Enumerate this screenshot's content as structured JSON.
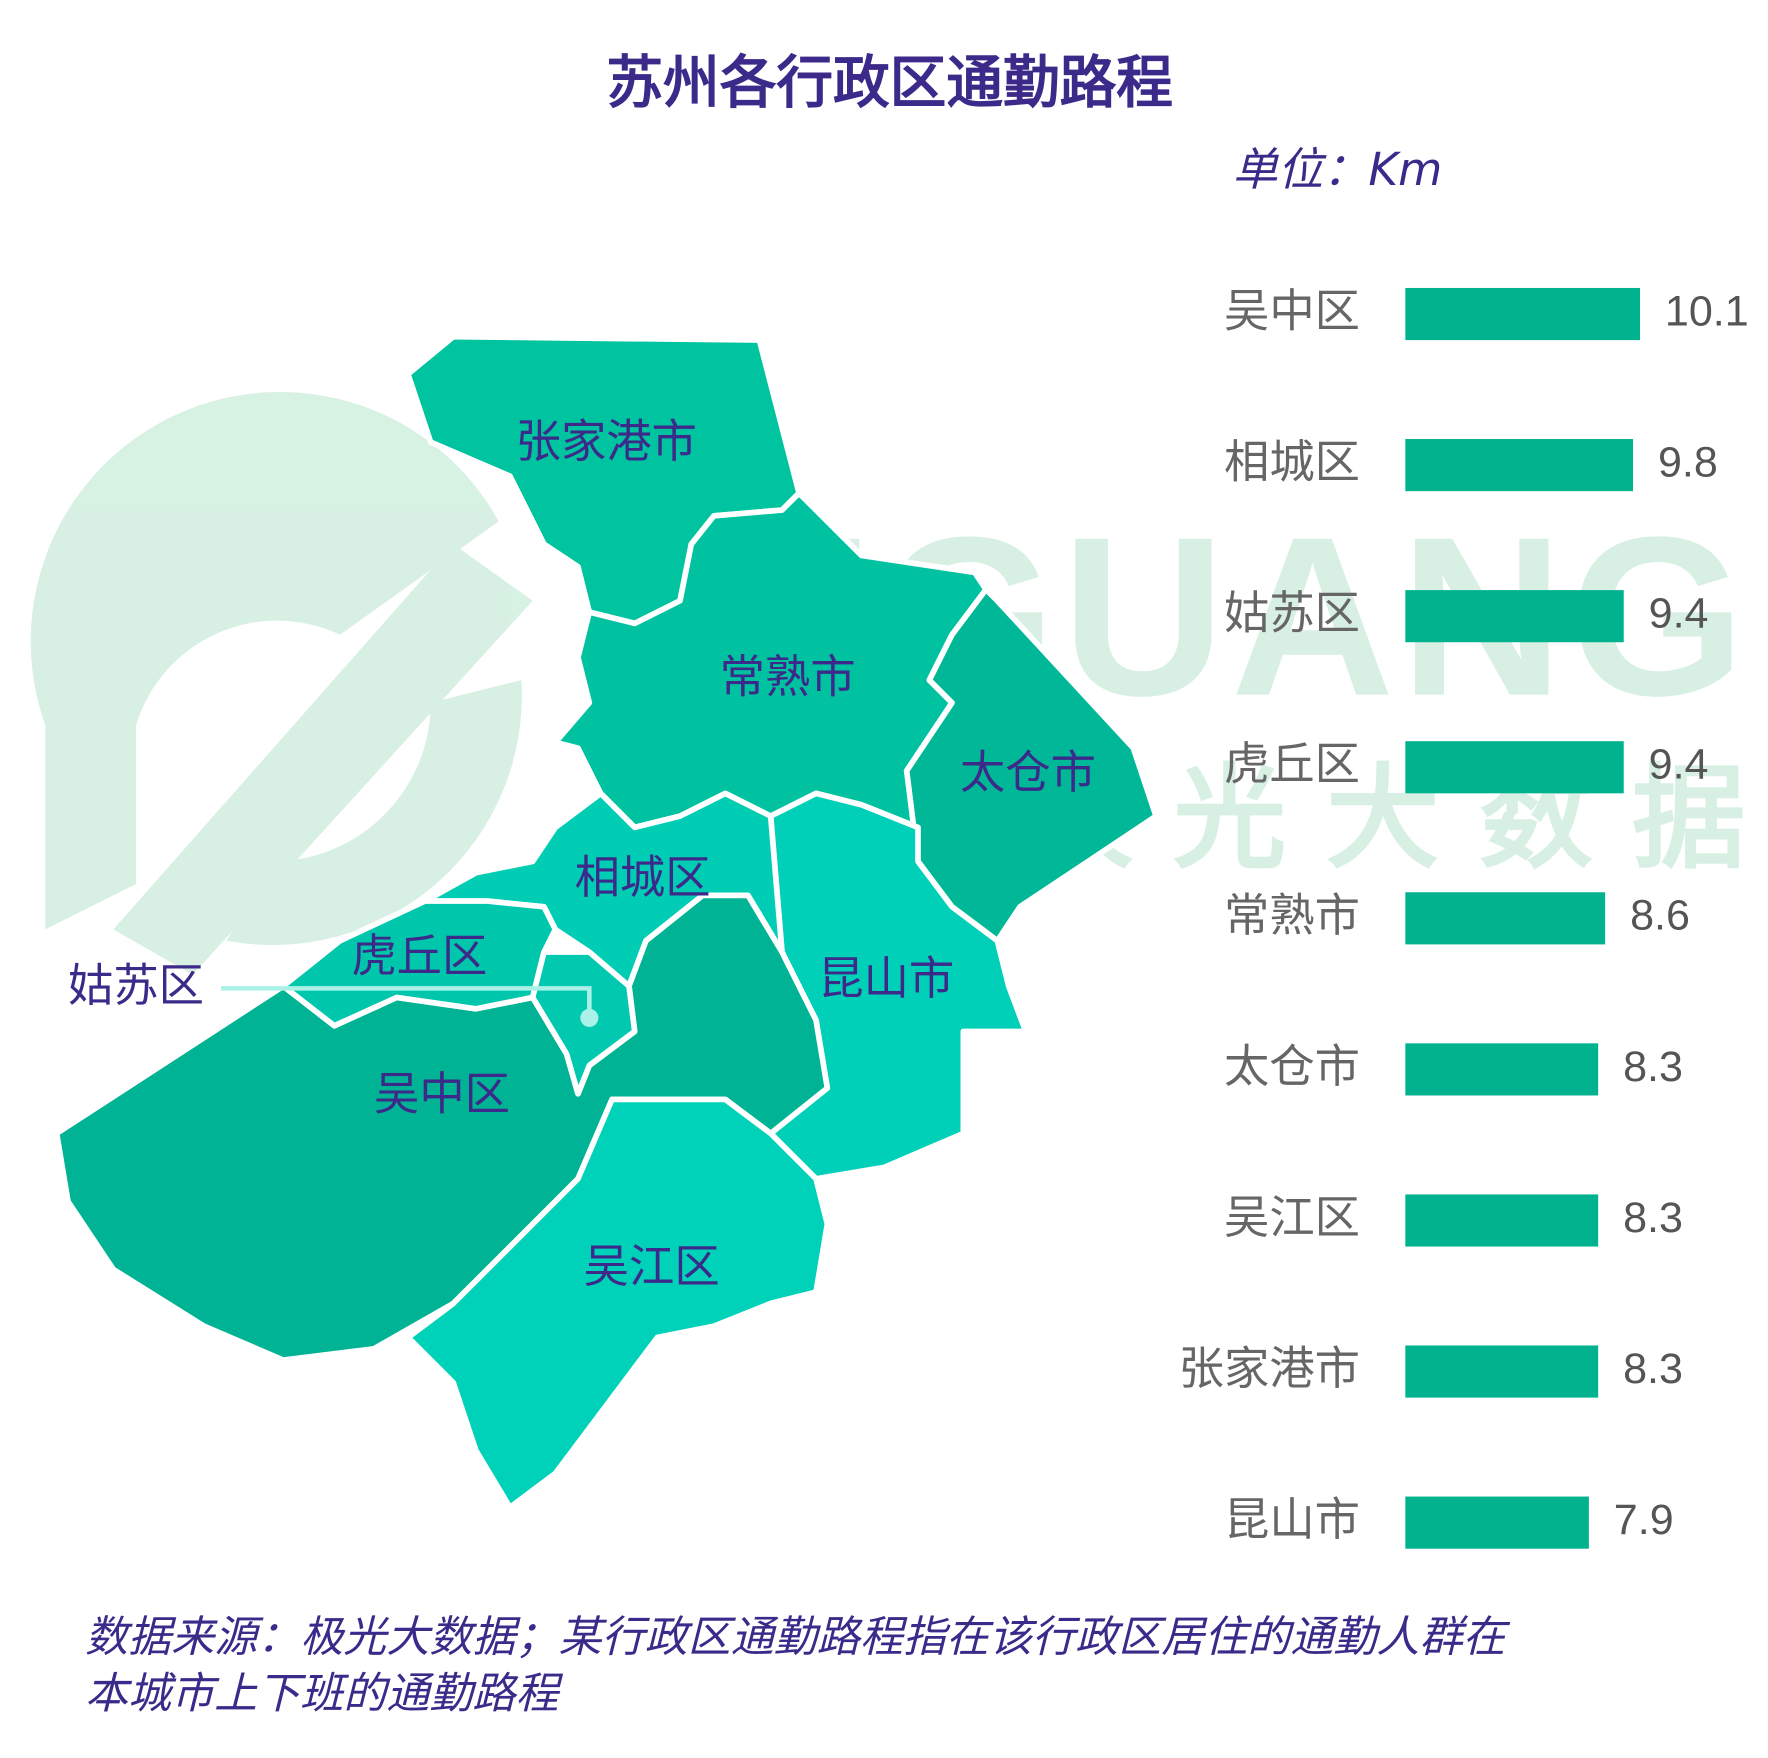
{
  "title": "苏州各行政区通勤路程",
  "unit_label": "单位：Km",
  "watermark": {
    "latin": "JIGUANG",
    "chinese": "极光大数据"
  },
  "map": {
    "regions": [
      {
        "name": "张家港市"
      },
      {
        "name": "常熟市"
      },
      {
        "name": "太仓市"
      },
      {
        "name": "相城区"
      },
      {
        "name": "虎丘区"
      },
      {
        "name": "姑苏区"
      },
      {
        "name": "昆山市"
      },
      {
        "name": "吴中区"
      },
      {
        "name": "吴江区"
      }
    ]
  },
  "chart_data": {
    "type": "bar",
    "orientation": "horizontal",
    "categories": [
      "吴中区",
      "相城区",
      "姑苏区",
      "虎丘区",
      "常熟市",
      "太仓市",
      "吴江区",
      "张家港市",
      "昆山市"
    ],
    "values": [
      10.1,
      9.8,
      9.4,
      9.4,
      8.6,
      8.3,
      8.3,
      8.3,
      7.9
    ],
    "color": "#00b28e"
  },
  "note": [
    "数据来源：极光大数据；某行政区通勤路程指在该行政区居住的通勤人群在",
    "本城市上下班的通勤路程"
  ]
}
